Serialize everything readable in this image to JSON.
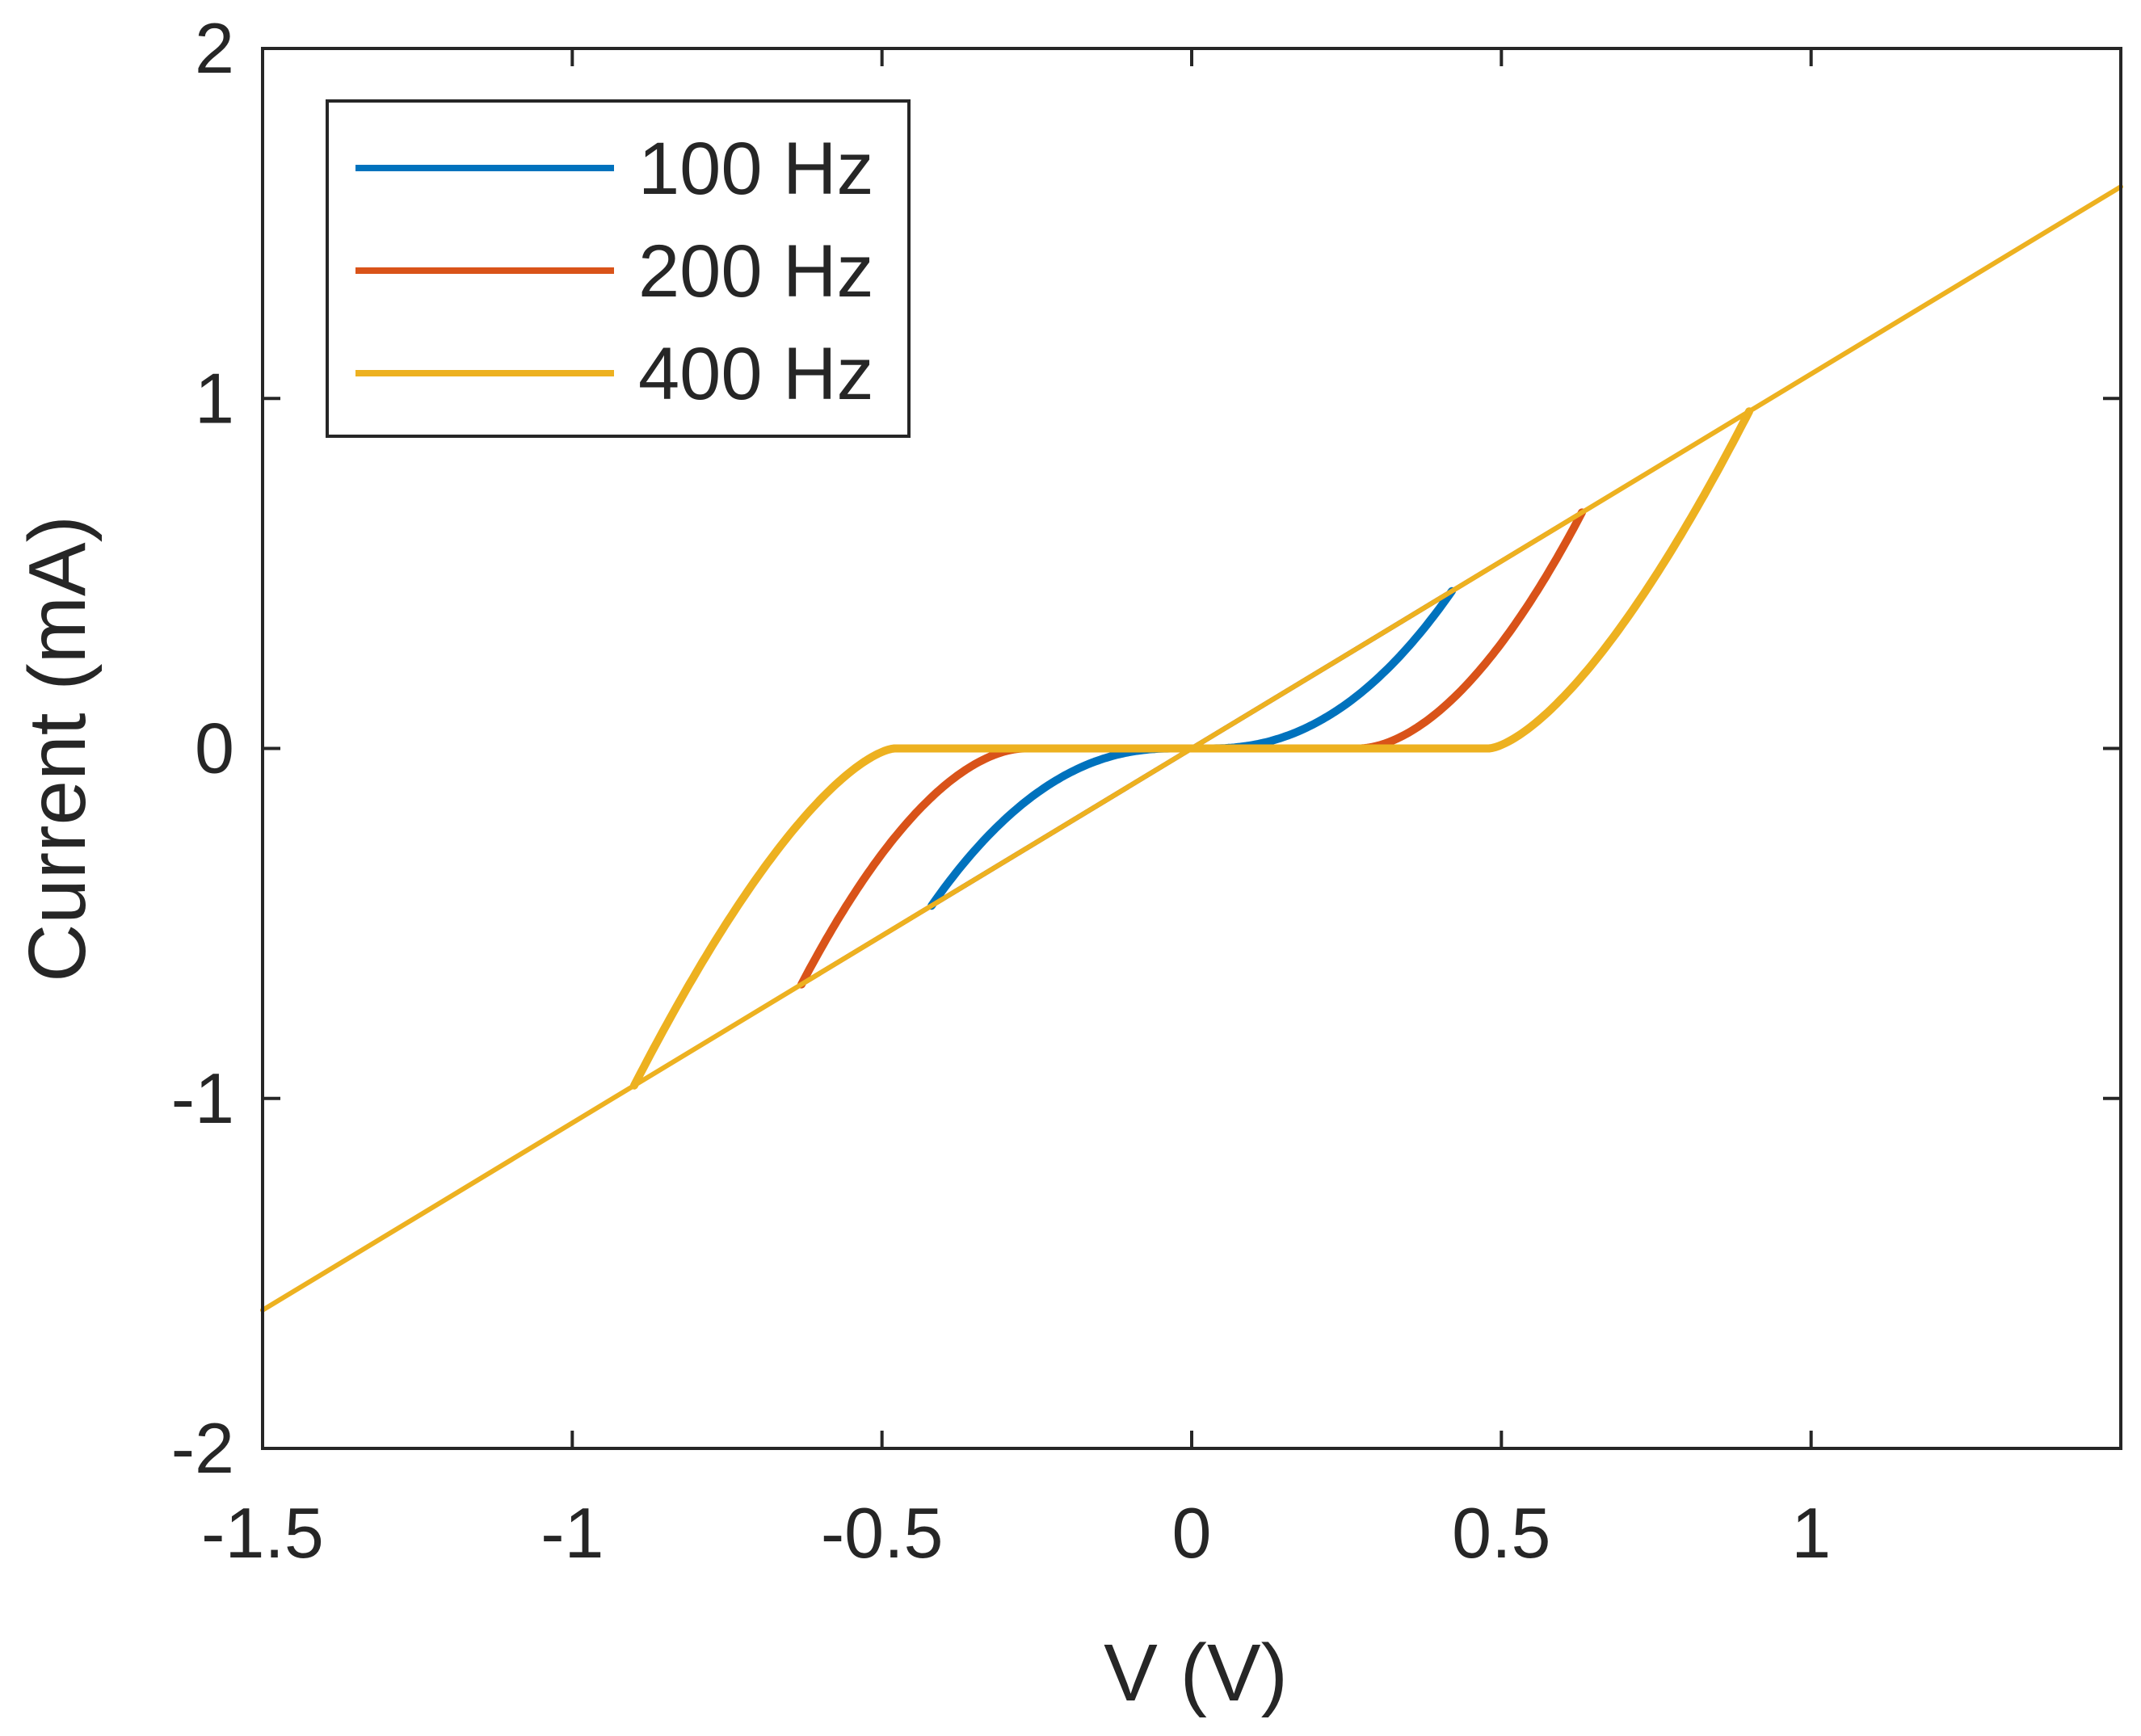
{
  "chart_data": {
    "type": "line",
    "title": "",
    "xlabel": "V (V)",
    "ylabel": "Current (mA)",
    "xlim": [
      -1.5,
      1.5
    ],
    "ylim": [
      -2,
      2
    ],
    "grid": false,
    "legend_position": "top-left",
    "x_ticks": [
      -1.5,
      -1,
      -0.5,
      0,
      0.5,
      1
    ],
    "x_tick_labels": [
      "-1.5",
      "-1",
      "-0.5",
      "0",
      "0.5",
      "1"
    ],
    "y_ticks": [
      -2,
      -1,
      0,
      1,
      2
    ],
    "y_tick_labels": [
      "-2",
      "-1",
      "0",
      "1",
      "2"
    ],
    "series": [
      {
        "name": "100 Hz",
        "color": "#0072BD",
        "amplitude": 0.42,
        "threshold": 0.03,
        "slope": 1.07,
        "exponent": 2.2,
        "diagonal_range": [
          -0.42,
          0.42
        ]
      },
      {
        "name": "200 Hz",
        "color": "#D95319",
        "amplitude": 0.63,
        "threshold": 0.27,
        "slope": 1.07,
        "exponent": 1.8,
        "diagonal_range": [
          -0.63,
          0.63
        ]
      },
      {
        "name": "400 Hz",
        "color": "#EDB120",
        "amplitude": 0.9,
        "threshold": 0.48,
        "slope": 1.07,
        "exponent": 1.5,
        "diagonal_range": [
          -1.5,
          1.5
        ]
      }
    ]
  }
}
